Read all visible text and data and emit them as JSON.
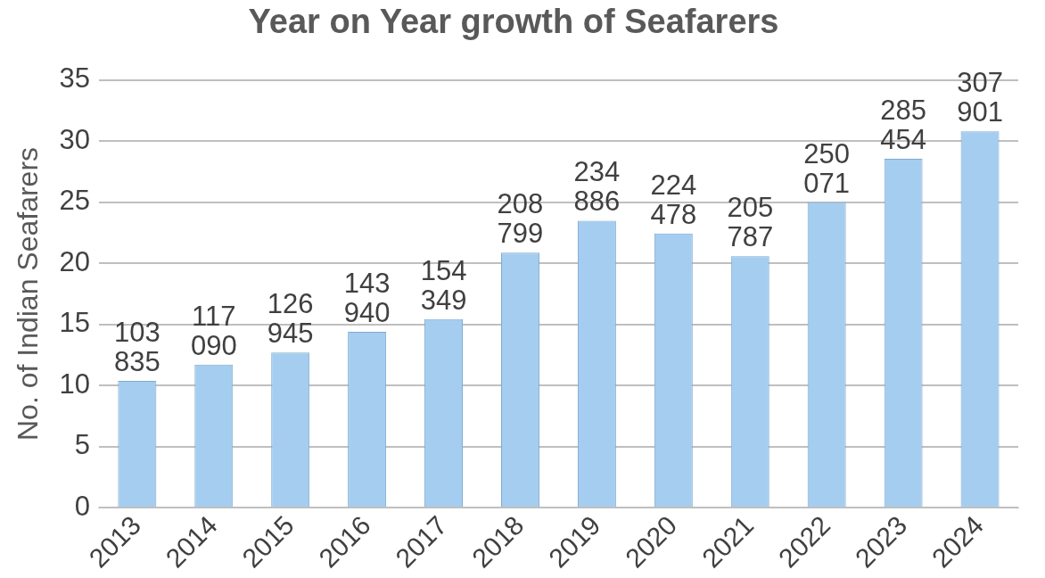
{
  "chart_data": {
    "type": "bar",
    "title": "Year on Year growth of Seafarers",
    "ylabel": "No. of Indian Seafarers",
    "categories": [
      "2013",
      "2014",
      "2015",
      "2016",
      "2017",
      "2018",
      "2019",
      "2020",
      "2021",
      "2022",
      "2023",
      "2024"
    ],
    "values": [
      10.3835,
      11.709,
      12.6945,
      14.394,
      15.4349,
      20.8799,
      23.4886,
      22.4478,
      20.5787,
      25.0071,
      28.5454,
      30.7901
    ],
    "annotations": [
      {
        "text": "103 835",
        "x": "2013",
        "y": 10.3835
      },
      {
        "text": "117 090",
        "x": "2014",
        "y": 11.709
      },
      {
        "text": "126 945",
        "x": "2015",
        "y": 12.6945
      },
      {
        "text": "143 940",
        "x": "2016",
        "y": 14.394
      },
      {
        "text": "154 349",
        "x": "2017",
        "y": 15.4349
      },
      {
        "text": "208 799",
        "x": "2018",
        "y": 20.8799
      },
      {
        "text": "234 886",
        "x": "2019",
        "y": 23.4886
      },
      {
        "text": "224 478",
        "x": "2020",
        "y": 22.4478
      },
      {
        "text": "205 787",
        "x": "2021",
        "y": 20.5787
      },
      {
        "text": "250 071",
        "x": "2022",
        "y": 25.0071
      },
      {
        "text": "285 454",
        "x": "2023",
        "y": 28.5454
      },
      {
        "text": "307 901",
        "x": "2024",
        "y": 30.7901
      }
    ],
    "color": "#a5cdf0",
    "ylim": [
      0,
      35
    ],
    "yticks": [
      0,
      5,
      10,
      15,
      20,
      25,
      30,
      35
    ],
    "grid": "y"
  }
}
